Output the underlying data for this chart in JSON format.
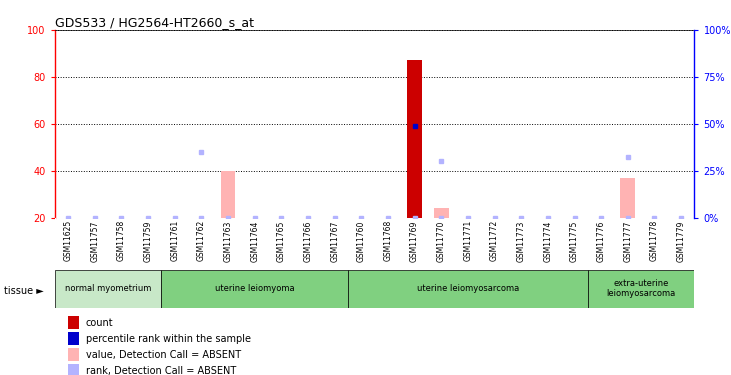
{
  "title": "GDS533 / HG2564-HT2660_s_at",
  "samples": [
    "GSM11625",
    "GSM11757",
    "GSM11758",
    "GSM11759",
    "GSM11761",
    "GSM11762",
    "GSM11763",
    "GSM11764",
    "GSM11765",
    "GSM11766",
    "GSM11767",
    "GSM11760",
    "GSM11768",
    "GSM11769",
    "GSM11770",
    "GSM11771",
    "GSM11772",
    "GSM11773",
    "GSM11774",
    "GSM11775",
    "GSM11776",
    "GSM11777",
    "GSM11778",
    "GSM11779"
  ],
  "n_samples": 24,
  "ylim": [
    20,
    100
  ],
  "yticks_left": [
    20,
    40,
    60,
    80,
    100
  ],
  "yticks_right": [
    0,
    25,
    50,
    75,
    100
  ],
  "yticklabels_right": [
    "0%",
    "25%",
    "50%",
    "75%",
    "100%"
  ],
  "baseline": 20,
  "absent_red_bars": {
    "indices": [
      6,
      14,
      21
    ],
    "tops": [
      40,
      24,
      37
    ]
  },
  "present_red_bars": {
    "indices": [
      13
    ],
    "tops": [
      87
    ]
  },
  "absent_blue_dots": {
    "indices": [
      5,
      14,
      21
    ],
    "values": [
      48,
      44,
      46
    ]
  },
  "present_blue_dots": {
    "indices": [
      13
    ],
    "values": [
      59
    ]
  },
  "all_sample_blue_dots": true,
  "tissue_groups": [
    {
      "label": "normal myometrium",
      "start": 0,
      "end": 4,
      "color": "#c8e8c8"
    },
    {
      "label": "uterine leiomyoma",
      "start": 4,
      "end": 11,
      "color": "#80d080"
    },
    {
      "label": "uterine leiomyosarcoma",
      "start": 11,
      "end": 20,
      "color": "#80d080"
    },
    {
      "label": "extra-uterine\nleiomyosarcoma",
      "start": 20,
      "end": 24,
      "color": "#80d080"
    }
  ],
  "absent_red_color": "#ffb3b3",
  "present_red_color": "#cc0000",
  "absent_blue_color": "#b3b3ff",
  "present_blue_color": "#0000cc",
  "bg_color": "#ffffff",
  "plot_bg_color": "#ffffff",
  "sample_label_bg": "#d3d3d3",
  "legend_items": [
    {
      "label": "count",
      "color": "#cc0000"
    },
    {
      "label": "percentile rank within the sample",
      "color": "#0000cc"
    },
    {
      "label": "value, Detection Call = ABSENT",
      "color": "#ffb3b3"
    },
    {
      "label": "rank, Detection Call = ABSENT",
      "color": "#b3b3ff"
    }
  ]
}
